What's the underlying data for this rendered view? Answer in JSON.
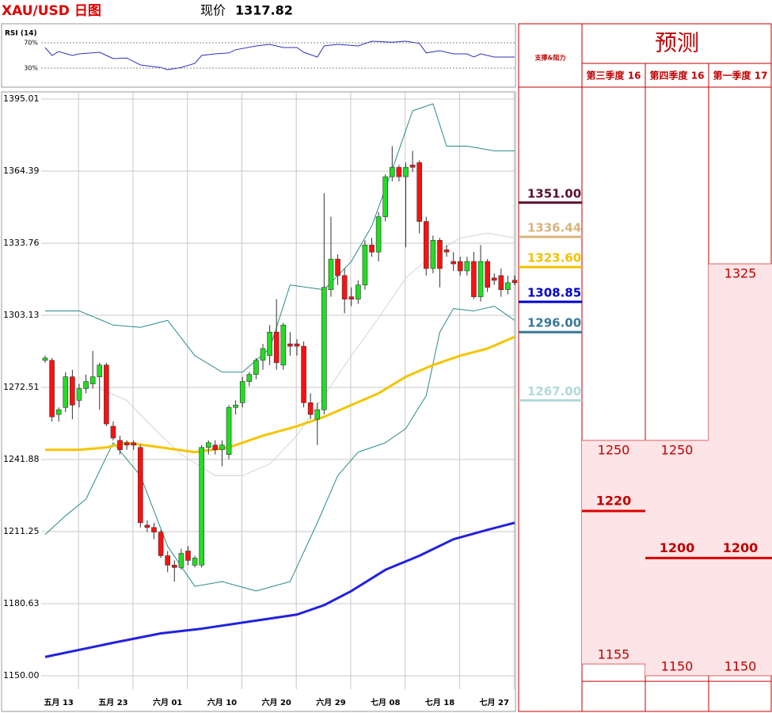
{
  "chart_data": [
    {
      "type": "line",
      "title": "RSI (14)",
      "xlim": [
        0,
        69
      ],
      "ylim": [
        2.5,
        97.5
      ],
      "yticks": [
        {
          "value": 70,
          "label": "70%"
        },
        {
          "value": 30,
          "label": "30%"
        }
      ],
      "color": "#3030c0",
      "x": [
        0,
        1,
        2,
        4,
        5,
        8,
        9,
        10,
        12,
        14,
        17,
        18,
        20,
        22,
        23,
        25,
        27,
        28,
        31,
        33,
        35,
        37,
        38,
        40,
        41,
        43,
        46,
        48,
        51,
        53,
        55,
        56,
        58,
        60,
        62,
        63,
        64,
        66,
        68,
        69
      ],
      "values": [
        62.5,
        50,
        56,
        50,
        52.5,
        55,
        50,
        45,
        46,
        35,
        31,
        27.5,
        31,
        37.5,
        50,
        52.5,
        54,
        59,
        65,
        67.5,
        62.5,
        62.5,
        55,
        47.5,
        65,
        67.5,
        65,
        72.5,
        71,
        72.5,
        69,
        54,
        57.5,
        52.5,
        52.5,
        47.5,
        52.5,
        47.5,
        47.5,
        47.5
      ]
    },
    {
      "type": "candlestick",
      "title": "XAU/USD 日图",
      "price_label": "现价",
      "price": 1317.82,
      "xlim": [
        0,
        69
      ],
      "ylim": [
        1150,
        1395.01
      ],
      "grid": true,
      "yticks": [
        1395.01,
        1364.39,
        1333.76,
        1303.13,
        1272.51,
        1241.88,
        1211.25,
        1180.63,
        {
          "value": 1150,
          "label": "1150.00"
        }
      ],
      "up_color": "#22dd22",
      "down_color": "#ff1010",
      "categories": [
        null,
        null,
        "五月 13",
        null,
        null,
        null,
        null,
        null,
        null,
        null,
        "五月 23",
        null,
        null,
        null,
        null,
        null,
        null,
        null,
        "六月 01",
        null,
        null,
        null,
        null,
        null,
        null,
        null,
        "六月 10",
        null,
        null,
        null,
        null,
        null,
        null,
        null,
        "六月 20",
        null,
        null,
        null,
        null,
        null,
        null,
        null,
        "六月 29",
        null,
        null,
        null,
        null,
        null,
        null,
        null,
        "七月 08",
        null,
        null,
        null,
        null,
        null,
        null,
        null,
        "七月 18",
        null,
        null,
        null,
        null,
        null,
        null,
        null,
        "七月 27",
        null,
        null,
        null
      ],
      "open": [
        1284,
        1284,
        1261,
        1264,
        1277,
        1267,
        1272,
        1274,
        1277,
        1282,
        1256,
        1250,
        1249,
        1249,
        1247,
        1214,
        1213,
        1211,
        1201,
        1197,
        1196,
        1203,
        1197,
        1197,
        1247,
        1248,
        1246,
        1244,
        1264,
        1266,
        1275,
        1278,
        1284,
        1286,
        1296,
        1282,
        1291,
        1291,
        1290,
        1266,
        1259,
        1263,
        1314,
        1327,
        1320,
        1311,
        1310,
        1316,
        1333,
        1330,
        1345,
        1362,
        1366,
        1362,
        1367,
        1368,
        1343,
        1323,
        1335,
        1331,
        1326,
        1326,
        1322,
        1326,
        1311,
        1326,
        1319,
        1320,
        1314,
        1318
      ],
      "high": [
        1286,
        1285,
        1264,
        1279,
        1280,
        1274,
        1278,
        1288,
        1283,
        1283,
        1258,
        1252,
        1250,
        1250,
        1248,
        1216,
        1215,
        1212,
        1203,
        1199,
        1204,
        1205,
        1201,
        1248,
        1250,
        1250,
        1250,
        1265,
        1267,
        1277,
        1279,
        1285,
        1291,
        1299,
        1310,
        1300,
        1296,
        1293,
        1292,
        1270,
        1266,
        1355,
        1345,
        1329,
        1323,
        1315,
        1318,
        1335,
        1336,
        1347,
        1363,
        1375,
        1367,
        1368,
        1373,
        1369,
        1345,
        1337,
        1336,
        1333,
        1330,
        1328,
        1328,
        1330,
        1333,
        1327,
        1321,
        1323,
        1320,
        1320
      ],
      "low": [
        1283,
        1258,
        1258,
        1262,
        1259,
        1264,
        1270,
        1272,
        1263,
        1256,
        1250,
        1244,
        1246,
        1246,
        1213,
        1211,
        1208,
        1200,
        1194,
        1190,
        1195,
        1197,
        1196,
        1196,
        1244,
        1244,
        1239,
        1242,
        1261,
        1264,
        1273,
        1276,
        1280,
        1282,
        1280,
        1280,
        1286,
        1286,
        1264,
        1259,
        1248,
        1261,
        1311,
        1316,
        1304,
        1307,
        1308,
        1314,
        1328,
        1326,
        1343,
        1360,
        1360,
        1332,
        1364,
        1338,
        1320,
        1321,
        1315,
        1328,
        1322,
        1320,
        1320,
        1310,
        1309,
        1313,
        1316,
        1311,
        1312,
        1316
      ],
      "close": [
        1285,
        1260,
        1263,
        1277,
        1265,
        1272,
        1275,
        1277,
        1282,
        1257,
        1251,
        1246,
        1248,
        1248,
        1215,
        1213,
        1211,
        1201,
        1197,
        1196,
        1202,
        1199,
        1200,
        1247,
        1249,
        1246,
        1248,
        1264,
        1265,
        1275,
        1278,
        1284,
        1289,
        1296,
        1283,
        1299,
        1290,
        1290,
        1266,
        1261,
        1263,
        1315,
        1327,
        1320,
        1310,
        1310,
        1316,
        1333,
        1330,
        1345,
        1362,
        1366,
        1362,
        1366,
        1366,
        1343,
        1323,
        1335,
        1323,
        1330,
        1325,
        1322,
        1326,
        1311,
        1326,
        1315,
        1318,
        1314,
        1317,
        1317
      ],
      "series": [
        {
          "color": "#2a8a8a",
          "line_width": 1,
          "x": [
            0,
            5,
            10,
            14,
            18,
            22,
            26,
            29,
            33,
            36,
            41,
            45,
            48,
            51,
            54,
            57,
            59,
            62,
            66,
            69
          ],
          "values": [
            1305,
            1305,
            1299,
            1298,
            1301,
            1286,
            1279,
            1279,
            1289,
            1316,
            1314,
            1326,
            1341,
            1365,
            1390,
            1393,
            1375,
            1375,
            1373,
            1373
          ]
        },
        {
          "color": "#2a8a8a",
          "line_width": 1,
          "x": [
            0,
            3,
            6,
            10,
            14,
            18,
            22,
            26,
            31,
            36,
            40,
            43,
            46,
            50,
            53,
            56,
            58,
            60,
            63,
            66,
            69
          ],
          "values": [
            1210,
            1218,
            1225,
            1249,
            1235,
            1205,
            1188,
            1190,
            1186,
            1190,
            1215,
            1235,
            1245,
            1249,
            1255,
            1269,
            1296,
            1306,
            1305,
            1307,
            1301
          ]
        },
        {
          "color": "#d4d4d4",
          "line_width": 1,
          "x": [
            8,
            12,
            16,
            20,
            25,
            29,
            33,
            37,
            41,
            45,
            49,
            53,
            57,
            61,
            65,
            69
          ],
          "values": [
            1272,
            1267,
            1255,
            1244,
            1235,
            1235,
            1240,
            1252,
            1269,
            1286,
            1302,
            1319,
            1329,
            1336,
            1338,
            1336
          ]
        },
        {
          "color": "#f5c400",
          "line_width": 3,
          "x": [
            0,
            5,
            9,
            12,
            17,
            22,
            27,
            32,
            37,
            41,
            45,
            49,
            53,
            57,
            61,
            65,
            69
          ],
          "values": [
            1246,
            1246,
            1247,
            1249,
            1247,
            1245,
            1247,
            1252,
            1256,
            1260,
            1265,
            1270,
            1277,
            1282,
            1286,
            1289,
            1294
          ]
        },
        {
          "color": "#2222dd",
          "line_width": 3,
          "x": [
            0,
            10,
            17,
            23,
            30,
            37,
            41,
            45,
            50,
            55,
            60,
            65,
            69
          ],
          "values": [
            1158,
            1164,
            1168,
            1170,
            1173,
            1176,
            1180,
            1186,
            1195,
            1201,
            1208,
            1212,
            1215
          ]
        }
      ],
      "levels": {
        "title": "支撑&阻力",
        "values": [
          1351,
          1336.44,
          1323.6,
          1308.85,
          1296,
          1267
        ],
        "value_labels": [
          "1351.00",
          "1336.44",
          "1323.60",
          "1308.85",
          "1296.00",
          "1267.00"
        ],
        "colors": [
          "#5a1030",
          "#d8b47e",
          "#f5c000",
          "#0000cc",
          "#3a7898",
          "#b4d8d8"
        ]
      }
    },
    {
      "type": "range",
      "title": "预测",
      "color": "#c00000",
      "fill": "#fde4e6",
      "categories": [
        "第三季度 16",
        "第四季度 16",
        "第一季度 17"
      ],
      "high": [
        1250,
        1250,
        1325
      ],
      "target": [
        1220,
        1200,
        1200
      ],
      "low": [
        1155,
        1150,
        1150
      ]
    }
  ]
}
